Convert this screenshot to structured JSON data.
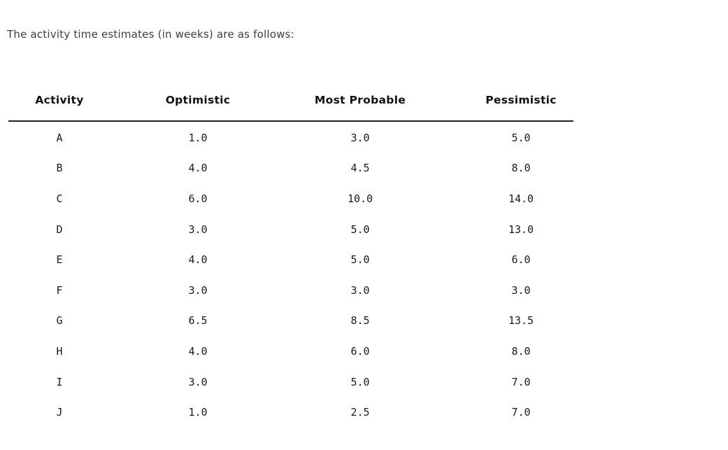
{
  "page": {
    "background_color": "#ffffff",
    "intro_text_color": "#3d3d3d",
    "table_text_color": "#1b1b1b",
    "rule_color": "#222222"
  },
  "intro": {
    "text": "The activity time estimates (in weeks) are as follows:"
  },
  "table": {
    "columns": [
      "Activity",
      "Optimistic",
      "Most Probable",
      "Pessimistic"
    ],
    "rows": [
      [
        "A",
        "1.0",
        "3.0",
        "5.0"
      ],
      [
        "B",
        "4.0",
        "4.5",
        "8.0"
      ],
      [
        "C",
        "6.0",
        "10.0",
        "14.0"
      ],
      [
        "D",
        "3.0",
        "5.0",
        "13.0"
      ],
      [
        "E",
        "4.0",
        "5.0",
        "6.0"
      ],
      [
        "F",
        "3.0",
        "3.0",
        "3.0"
      ],
      [
        "G",
        "6.5",
        "8.5",
        "13.5"
      ],
      [
        "H",
        "4.0",
        "6.0",
        "8.0"
      ],
      [
        "I",
        "3.0",
        "5.0",
        "7.0"
      ],
      [
        "J",
        "1.0",
        "2.5",
        "7.0"
      ]
    ]
  }
}
